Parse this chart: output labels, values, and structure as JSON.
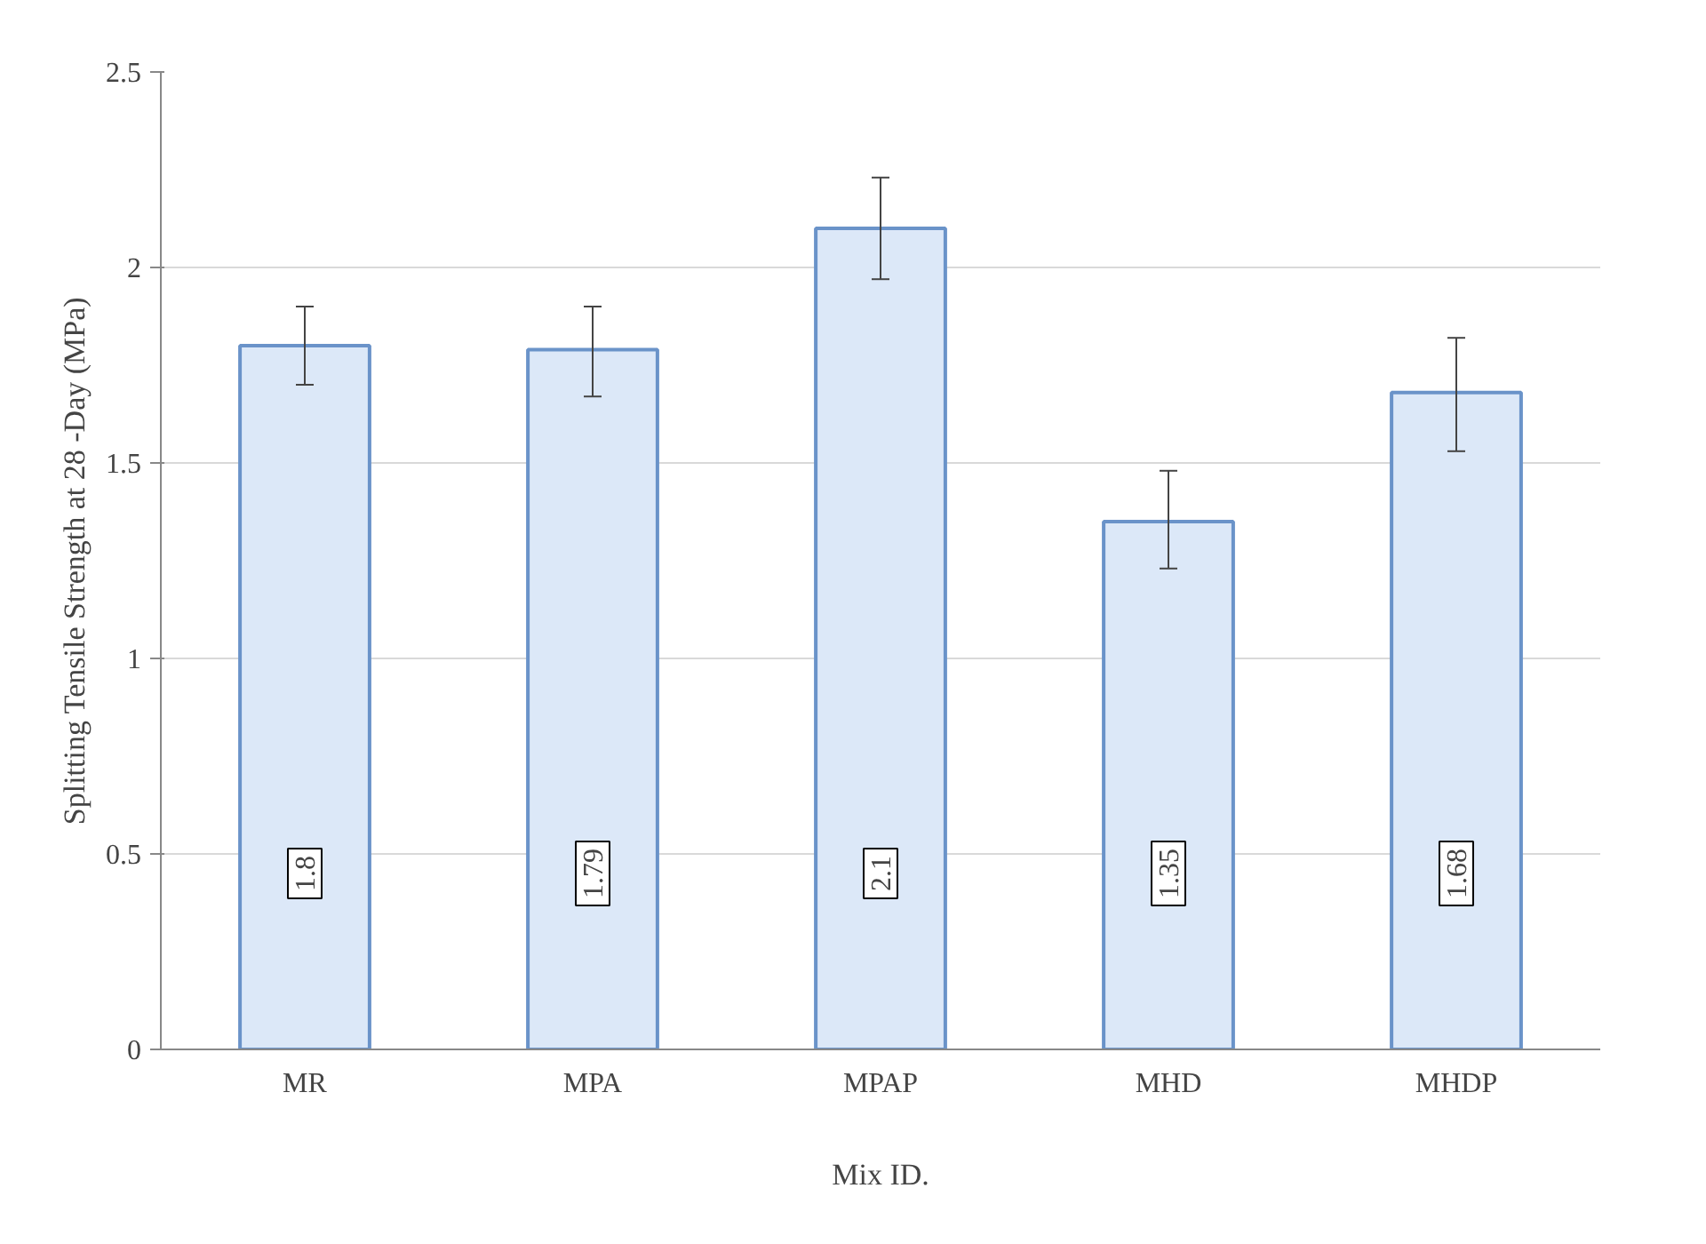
{
  "chart_data": {
    "type": "bar",
    "xlabel": "Mix ID.",
    "ylabel": "Splitting Tensile Strength at 28 -Day (MPa)",
    "categories": [
      "MR",
      "MPA",
      "MPAP",
      "MHD",
      "MHDP"
    ],
    "values": [
      1.8,
      1.79,
      2.1,
      1.35,
      1.68
    ],
    "errors": [
      [
        1.7,
        1.9
      ],
      [
        1.67,
        1.9
      ],
      [
        1.97,
        2.23
      ],
      [
        1.23,
        1.48
      ],
      [
        1.53,
        1.82
      ]
    ],
    "color": "#dce8f8",
    "ylim": [
      0,
      2.5
    ],
    "yticks": [
      0,
      0.5,
      1,
      1.5,
      2,
      2.5
    ],
    "grid": "y",
    "data_labels": true
  }
}
